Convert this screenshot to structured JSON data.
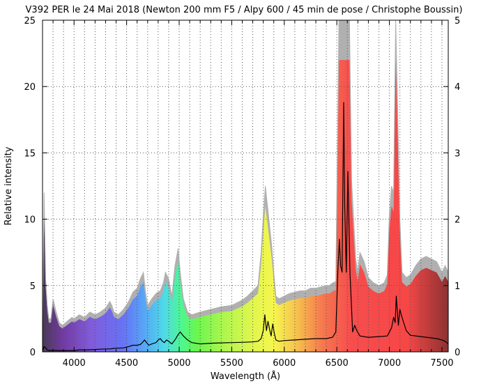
{
  "chart_data": {
    "type": "line",
    "title": "V392 PER le 24 Mai 2018 (Newton 200 mm F5 / Alpy 600 / 45 min de pose / Christophe Boussin)",
    "xlabel": "Wavelength (Å)",
    "ylabel": "Relative intensity",
    "xlim": [
      3700,
      7560
    ],
    "ylim": [
      0,
      25
    ],
    "y2lim": [
      0,
      5
    ],
    "x_ticks": [
      4000,
      4500,
      5000,
      5500,
      6000,
      6500,
      7000,
      7500
    ],
    "y_ticks": [
      0,
      5,
      10,
      15,
      20,
      25
    ],
    "y2_ticks": [
      0,
      1,
      2,
      3,
      4,
      5
    ],
    "grid": true,
    "legend": "none",
    "series": [
      {
        "role": "scaled-x5-grey-envelope",
        "color": "#b0b0b0",
        "fill": "rainbow-spectrum",
        "x": [
          3700,
          3715,
          3730,
          3745,
          3760,
          3780,
          3800,
          3830,
          3860,
          3890,
          3920,
          3950,
          3980,
          4000,
          4050,
          4100,
          4150,
          4200,
          4250,
          4300,
          4340,
          4360,
          4380,
          4420,
          4470,
          4520,
          4560,
          4600,
          4630,
          4660,
          4680,
          4700,
          4740,
          4780,
          4820,
          4850,
          4870,
          4900,
          4930,
          4960,
          4990,
          5010,
          5040,
          5080,
          5120,
          5200,
          5300,
          5400,
          5500,
          5550,
          5600,
          5650,
          5700,
          5750,
          5780,
          5800,
          5820,
          5840,
          5860,
          5880,
          5900,
          5920,
          5950,
          6000,
          6050,
          6100,
          6150,
          6200,
          6250,
          6300,
          6350,
          6400,
          6430,
          6460,
          6490,
          6520,
          6540,
          6560,
          6580,
          6600,
          6620,
          6640,
          6660,
          6680,
          6700,
          6720,
          6760,
          6800,
          6850,
          6900,
          6950,
          6980,
          7000,
          7020,
          7040,
          7060,
          7080,
          7100,
          7120,
          7160,
          7200,
          7250,
          7300,
          7350,
          7400,
          7450,
          7500,
          7530,
          7560
        ],
        "values": [
          2.0,
          12.0,
          5.5,
          3.5,
          2.5,
          2.5,
          4.0,
          3.0,
          2.2,
          2.0,
          2.2,
          2.4,
          2.6,
          2.5,
          2.8,
          2.6,
          3.0,
          2.8,
          3.0,
          3.3,
          3.8,
          3.5,
          3.0,
          2.8,
          3.2,
          3.8,
          4.5,
          4.8,
          5.5,
          6.0,
          4.5,
          3.5,
          4.0,
          4.4,
          4.6,
          5.2,
          6.0,
          5.5,
          4.2,
          6.5,
          7.8,
          6.0,
          4.0,
          3.0,
          2.8,
          3.0,
          3.2,
          3.4,
          3.5,
          3.7,
          3.9,
          4.2,
          4.6,
          5.0,
          7.5,
          10.2,
          12.5,
          11.0,
          9.5,
          8.0,
          6.0,
          4.2,
          4.0,
          4.2,
          4.4,
          4.5,
          4.6,
          4.6,
          4.8,
          4.8,
          4.9,
          5.0,
          5.0,
          5.2,
          5.3,
          25,
          25,
          25,
          25,
          25,
          25,
          13.0,
          10.0,
          7.0,
          6.0,
          7.5,
          6.8,
          5.6,
          5.2,
          5.0,
          5.2,
          5.8,
          10.5,
          12.5,
          12.0,
          25,
          18.0,
          10.0,
          6.0,
          5.6,
          5.8,
          6.5,
          7.0,
          7.2,
          7.0,
          6.8,
          6.0,
          6.5,
          6.0
        ]
      },
      {
        "role": "observed-black",
        "color": "#000000",
        "x": [
          3700,
          3715,
          3730,
          3745,
          3760,
          3800,
          3850,
          3900,
          3950,
          4000,
          4050,
          4100,
          4150,
          4200,
          4250,
          4300,
          4340,
          4380,
          4420,
          4470,
          4520,
          4560,
          4600,
          4630,
          4650,
          4670,
          4690,
          4710,
          4740,
          4780,
          4800,
          4820,
          4840,
          4860,
          4880,
          4900,
          4930,
          4960,
          4990,
          5010,
          5040,
          5080,
          5120,
          5200,
          5300,
          5400,
          5500,
          5600,
          5700,
          5750,
          5780,
          5800,
          5815,
          5830,
          5845,
          5860,
          5875,
          5890,
          5905,
          5920,
          5950,
          6000,
          6100,
          6200,
          6300,
          6400,
          6460,
          6490,
          6510,
          6525,
          6535,
          6550,
          6565,
          6575,
          6590,
          6605,
          6625,
          6650,
          6670,
          6690,
          6720,
          6800,
          6900,
          6980,
          7020,
          7040,
          7055,
          7065,
          7085,
          7100,
          7120,
          7160,
          7200,
          7300,
          7400,
          7450,
          7500,
          7530,
          7560
        ],
        "values": [
          0.1,
          0.4,
          0.3,
          0.15,
          0.1,
          0.12,
          0.1,
          0.1,
          0.1,
          0.1,
          0.15,
          0.15,
          0.16,
          0.18,
          0.2,
          0.22,
          0.22,
          0.26,
          0.28,
          0.3,
          0.4,
          0.5,
          0.5,
          0.55,
          0.7,
          0.9,
          0.7,
          0.5,
          0.6,
          0.7,
          0.9,
          1.0,
          0.8,
          0.7,
          0.9,
          0.8,
          0.6,
          0.9,
          1.3,
          1.5,
          1.2,
          0.9,
          0.7,
          0.6,
          0.65,
          0.68,
          0.7,
          0.72,
          0.75,
          0.8,
          1.0,
          1.6,
          2.8,
          1.6,
          2.3,
          1.7,
          1.2,
          2.1,
          1.4,
          0.9,
          0.8,
          0.85,
          0.9,
          0.95,
          1.0,
          1.0,
          1.1,
          1.5,
          6.2,
          8.5,
          6.5,
          6.0,
          18.8,
          11.0,
          6.0,
          13.6,
          6.0,
          1.5,
          2.0,
          1.6,
          1.2,
          1.1,
          1.15,
          1.2,
          1.8,
          2.6,
          2.2,
          4.2,
          2.0,
          3.2,
          2.6,
          1.6,
          1.25,
          1.15,
          1.05,
          1.0,
          0.9,
          0.8,
          0.6
        ]
      }
    ]
  }
}
